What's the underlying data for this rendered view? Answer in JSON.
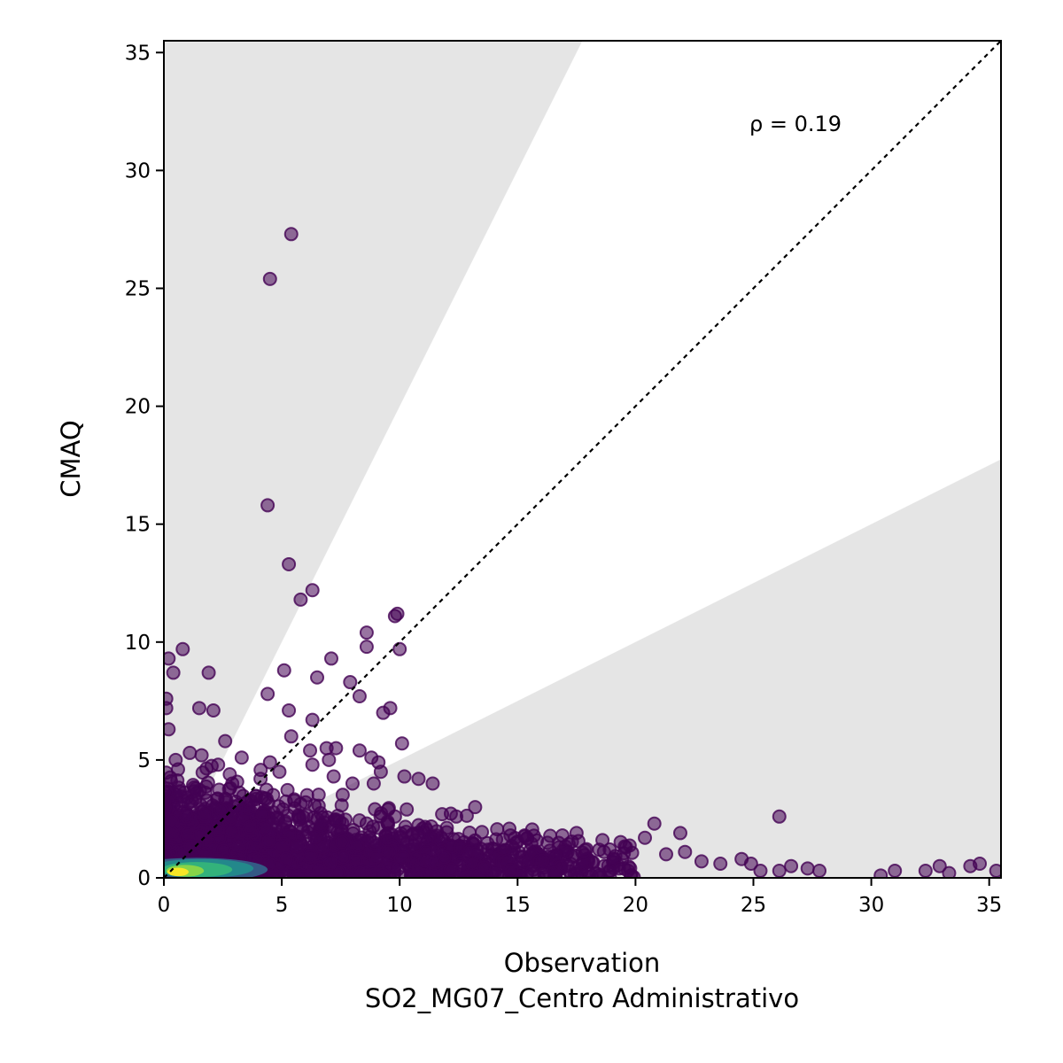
{
  "chart_data": {
    "type": "scatter",
    "xlabel": "Observation",
    "xlabel_line2": "SO2_MG07_Centro Administrativo",
    "ylabel": "CMAQ",
    "annotation": "ρ = 0.19",
    "xlim": [
      0,
      35.5
    ],
    "ylim": [
      0,
      35.5
    ],
    "xticks": [
      "0",
      "5",
      "10",
      "15",
      "20",
      "25",
      "30",
      "35"
    ],
    "yticks": [
      "0",
      "5",
      "10",
      "15",
      "20",
      "25",
      "30",
      "35"
    ],
    "reference_line": "1:1",
    "shaded_region": "outside factor-of-2 band (y > 2x and y < 0.5x)",
    "colormap": "viridis (point density)",
    "point_color": "#440154",
    "point_opacity": 0.55,
    "points": [
      [
        5.4,
        27.3
      ],
      [
        4.5,
        25.4
      ],
      [
        4.4,
        15.8
      ],
      [
        5.3,
        13.3
      ],
      [
        5.8,
        11.8
      ],
      [
        6.3,
        12.2
      ],
      [
        9.9,
        11.2
      ],
      [
        9.8,
        11.1
      ],
      [
        8.6,
        10.4
      ],
      [
        8.6,
        9.8
      ],
      [
        10.0,
        9.7
      ],
      [
        7.1,
        9.3
      ],
      [
        0.2,
        9.3
      ],
      [
        0.4,
        8.7
      ],
      [
        0.8,
        9.7
      ],
      [
        1.9,
        8.7
      ],
      [
        5.1,
        8.8
      ],
      [
        6.5,
        8.5
      ],
      [
        4.4,
        7.8
      ],
      [
        7.9,
        8.3
      ],
      [
        8.3,
        7.7
      ],
      [
        9.6,
        7.2
      ],
      [
        9.3,
        7.0
      ],
      [
        5.3,
        7.1
      ],
      [
        1.5,
        7.2
      ],
      [
        2.1,
        7.1
      ],
      [
        6.3,
        6.7
      ],
      [
        0.1,
        7.2
      ],
      [
        0.1,
        7.6
      ],
      [
        0.2,
        6.3
      ],
      [
        5.4,
        6.0
      ],
      [
        10.1,
        5.7
      ],
      [
        2.6,
        5.8
      ],
      [
        6.9,
        5.5
      ],
      [
        7.3,
        5.5
      ],
      [
        6.2,
        5.4
      ],
      [
        8.3,
        5.4
      ],
      [
        8.8,
        5.1
      ],
      [
        9.1,
        4.9
      ],
      [
        4.5,
        4.9
      ],
      [
        3.3,
        5.1
      ],
      [
        1.1,
        5.3
      ],
      [
        0.5,
        5.0
      ],
      [
        1.6,
        5.2
      ],
      [
        2.3,
        4.8
      ],
      [
        7.0,
        5.0
      ],
      [
        4.9,
        4.5
      ],
      [
        6.3,
        4.8
      ],
      [
        9.2,
        4.5
      ],
      [
        10.2,
        4.3
      ],
      [
        10.8,
        4.2
      ],
      [
        11.4,
        4.0
      ],
      [
        8.9,
        4.0
      ],
      [
        8.0,
        4.0
      ],
      [
        7.2,
        4.3
      ],
      [
        4.1,
        4.2
      ],
      [
        2.9,
        4.0
      ],
      [
        0.6,
        4.6
      ],
      [
        0.3,
        4.1
      ],
      [
        13.2,
        3.0
      ],
      [
        10.3,
        2.9
      ],
      [
        11.8,
        2.7
      ],
      [
        12.4,
        2.6
      ],
      [
        9.8,
        2.6
      ],
      [
        26.1,
        2.6
      ],
      [
        20.8,
        2.3
      ],
      [
        21.9,
        1.9
      ],
      [
        20.4,
        1.7
      ],
      [
        19.6,
        1.3
      ],
      [
        18.6,
        1.6
      ],
      [
        17.5,
        1.9
      ],
      [
        16.9,
        1.8
      ],
      [
        15.3,
        1.8
      ],
      [
        14.7,
        1.8
      ],
      [
        22.1,
        1.1
      ],
      [
        21.3,
        1.0
      ],
      [
        22.8,
        0.7
      ],
      [
        24.5,
        0.8
      ],
      [
        24.9,
        0.6
      ],
      [
        23.6,
        0.6
      ],
      [
        25.3,
        0.3
      ],
      [
        26.1,
        0.3
      ],
      [
        26.6,
        0.5
      ],
      [
        27.3,
        0.4
      ],
      [
        27.8,
        0.3
      ],
      [
        30.4,
        0.1
      ],
      [
        31.0,
        0.3
      ],
      [
        32.3,
        0.3
      ],
      [
        32.9,
        0.5
      ],
      [
        33.3,
        0.2
      ],
      [
        34.2,
        0.5
      ],
      [
        34.6,
        0.6
      ],
      [
        35.3,
        0.3
      ],
      [
        19.3,
        0.4
      ],
      [
        18.9,
        0.3
      ],
      [
        17.8,
        0.6
      ]
    ],
    "clusters": [
      {
        "cx": 4.0,
        "cy": 1.3,
        "sx": 3.3,
        "sy": 0.9,
        "n": 520
      },
      {
        "cx": 9.0,
        "cy": 0.9,
        "sx": 4.0,
        "sy": 0.7,
        "n": 420
      },
      {
        "cx": 14.5,
        "cy": 0.7,
        "sx": 3.5,
        "sy": 0.5,
        "n": 260
      },
      {
        "cx": 2.0,
        "cy": 2.4,
        "sx": 2.0,
        "sy": 1.0,
        "n": 300
      },
      {
        "cx": 1.0,
        "cy": 0.4,
        "sx": 1.2,
        "sy": 0.35,
        "n": 240
      }
    ],
    "density_blobs": [
      {
        "cx": 1.4,
        "cy": 0.35,
        "rx": 3.0,
        "ry": 0.5,
        "color": "#31688e",
        "opacity": 0.85
      },
      {
        "cx": 1.6,
        "cy": 0.4,
        "rx": 2.2,
        "ry": 0.4,
        "color": "#21918c",
        "opacity": 0.85
      },
      {
        "cx": 1.4,
        "cy": 0.35,
        "rx": 1.5,
        "ry": 0.32,
        "color": "#35b779",
        "opacity": 0.9
      },
      {
        "cx": 0.9,
        "cy": 0.3,
        "rx": 0.8,
        "ry": 0.25,
        "color": "#90d743",
        "opacity": 0.9
      },
      {
        "cx": 0.6,
        "cy": 0.25,
        "rx": 0.45,
        "ry": 0.18,
        "color": "#fde725",
        "opacity": 0.95
      }
    ]
  }
}
